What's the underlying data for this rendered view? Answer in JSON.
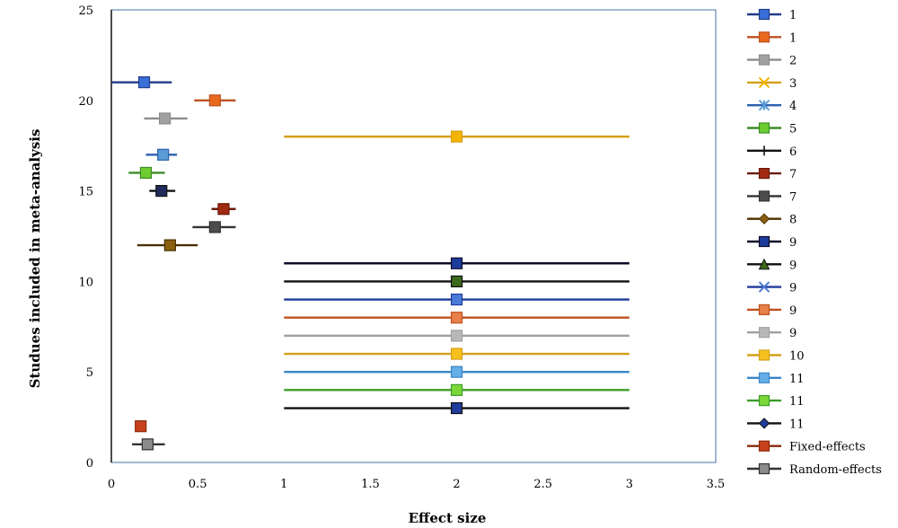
{
  "chart_data": {
    "type": "scatter",
    "title": "",
    "xlabel": "Effect size",
    "ylabel": "Studues included in meta-analysis",
    "xlim": [
      0,
      3.5
    ],
    "ylim": [
      0,
      25
    ],
    "x_ticks": [
      "0",
      "0.5",
      "1",
      "1.5",
      "2",
      "2.5",
      "3",
      "3.5"
    ],
    "x_tick_values": [
      0,
      0.5,
      1,
      1.5,
      2,
      2.5,
      3,
      3.5
    ],
    "y_ticks": [
      "0",
      "5",
      "10",
      "15",
      "20",
      "25"
    ],
    "y_tick_values": [
      0,
      5,
      10,
      15,
      20,
      25
    ],
    "grid": false,
    "legend_position": "right",
    "series": [
      {
        "name": "1",
        "color": "#1f3c88",
        "marker": "square",
        "marker_color": "#3a6fd8",
        "x": 0.19,
        "y": 21,
        "ci": [
          0.0,
          0.35
        ]
      },
      {
        "name": "1",
        "color": "#c0501f",
        "marker": "square",
        "marker_color": "#e8691e",
        "x": 0.6,
        "y": 20,
        "ci": [
          0.48,
          0.72
        ]
      },
      {
        "name": "2",
        "color": "#8c8c8c",
        "marker": "square",
        "marker_color": "#a0a0a0",
        "x": 0.31,
        "y": 19,
        "ci": [
          0.19,
          0.44
        ]
      },
      {
        "name": "3",
        "color": "#d4a017",
        "marker": "x",
        "marker_color": "#f4b400",
        "x": 2.0,
        "y": 18,
        "ci": [
          1.0,
          3.0
        ]
      },
      {
        "name": "4",
        "color": "#2a5fb0",
        "marker": "asterisk",
        "marker_color": "#5b9bd5",
        "x": 0.3,
        "y": 17,
        "ci": [
          0.2,
          0.38
        ]
      },
      {
        "name": "5",
        "color": "#3c8c28",
        "marker": "square",
        "marker_color": "#6ccc30",
        "x": 0.2,
        "y": 16,
        "ci": [
          0.1,
          0.31
        ]
      },
      {
        "name": "6",
        "color": "#111111",
        "marker": "plus",
        "marker_color": "#222b5c",
        "x": 0.29,
        "y": 15,
        "ci": [
          0.22,
          0.37
        ]
      },
      {
        "name": "7",
        "color": "#6b1a0a",
        "marker": "square",
        "marker_color": "#a02a12",
        "x": 0.65,
        "y": 14,
        "ci": [
          0.58,
          0.72
        ]
      },
      {
        "name": "7",
        "color": "#333333",
        "marker": "square",
        "marker_color": "#4d4d4d",
        "x": 0.6,
        "y": 13,
        "ci": [
          0.47,
          0.72
        ]
      },
      {
        "name": "8",
        "color": "#4a3000",
        "marker": "diamond",
        "marker_color": "#8a6010",
        "x": 0.34,
        "y": 12,
        "ci": [
          0.15,
          0.5
        ]
      },
      {
        "name": "9",
        "color": "#0d0d2b",
        "marker": "square",
        "marker_color": "#1c3c9c",
        "x": 2.0,
        "y": 11,
        "ci": [
          1.0,
          3.0
        ]
      },
      {
        "name": "9",
        "color": "#111111",
        "marker": "triangle",
        "marker_color": "#3a6a1a",
        "x": 2.0,
        "y": 10,
        "ci": [
          1.0,
          3.0
        ]
      },
      {
        "name": "9",
        "color": "#1f3c9c",
        "marker": "x",
        "marker_color": "#4c7ad8",
        "x": 2.0,
        "y": 9,
        "ci": [
          1.0,
          3.0
        ]
      },
      {
        "name": "9",
        "color": "#c0501f",
        "marker": "square",
        "marker_color": "#e8804a",
        "x": 2.0,
        "y": 8,
        "ci": [
          1.0,
          3.0
        ]
      },
      {
        "name": "9",
        "color": "#a0a0a0",
        "marker": "square",
        "marker_color": "#b8b8b8",
        "x": 2.0,
        "y": 7,
        "ci": [
          1.0,
          3.0
        ]
      },
      {
        "name": "10",
        "color": "#d4a017",
        "marker": "square",
        "marker_color": "#f6c11e",
        "x": 2.0,
        "y": 6,
        "ci": [
          1.0,
          3.0
        ]
      },
      {
        "name": "11",
        "color": "#3a86c8",
        "marker": "square",
        "marker_color": "#64aee8",
        "x": 2.0,
        "y": 5,
        "ci": [
          1.0,
          3.0
        ]
      },
      {
        "name": "11",
        "color": "#3c9c28",
        "marker": "square",
        "marker_color": "#7cd838",
        "x": 2.0,
        "y": 4,
        "ci": [
          1.0,
          3.0
        ]
      },
      {
        "name": "11",
        "color": "#111111",
        "marker": "diamond",
        "marker_color": "#1f3c9c",
        "x": 2.0,
        "y": 3,
        "ci": [
          1.0,
          3.0
        ]
      },
      {
        "name": "Fixed-effects",
        "color": "#8a2a0a",
        "marker": "square",
        "marker_color": "#c8411c",
        "x": 0.17,
        "y": 2,
        "ci": null
      },
      {
        "name": "Random-effects",
        "color": "#333333",
        "marker": "square",
        "marker_color": "#8c8c8c",
        "x": 0.21,
        "y": 1,
        "ci": [
          0.12,
          0.31
        ]
      }
    ]
  }
}
